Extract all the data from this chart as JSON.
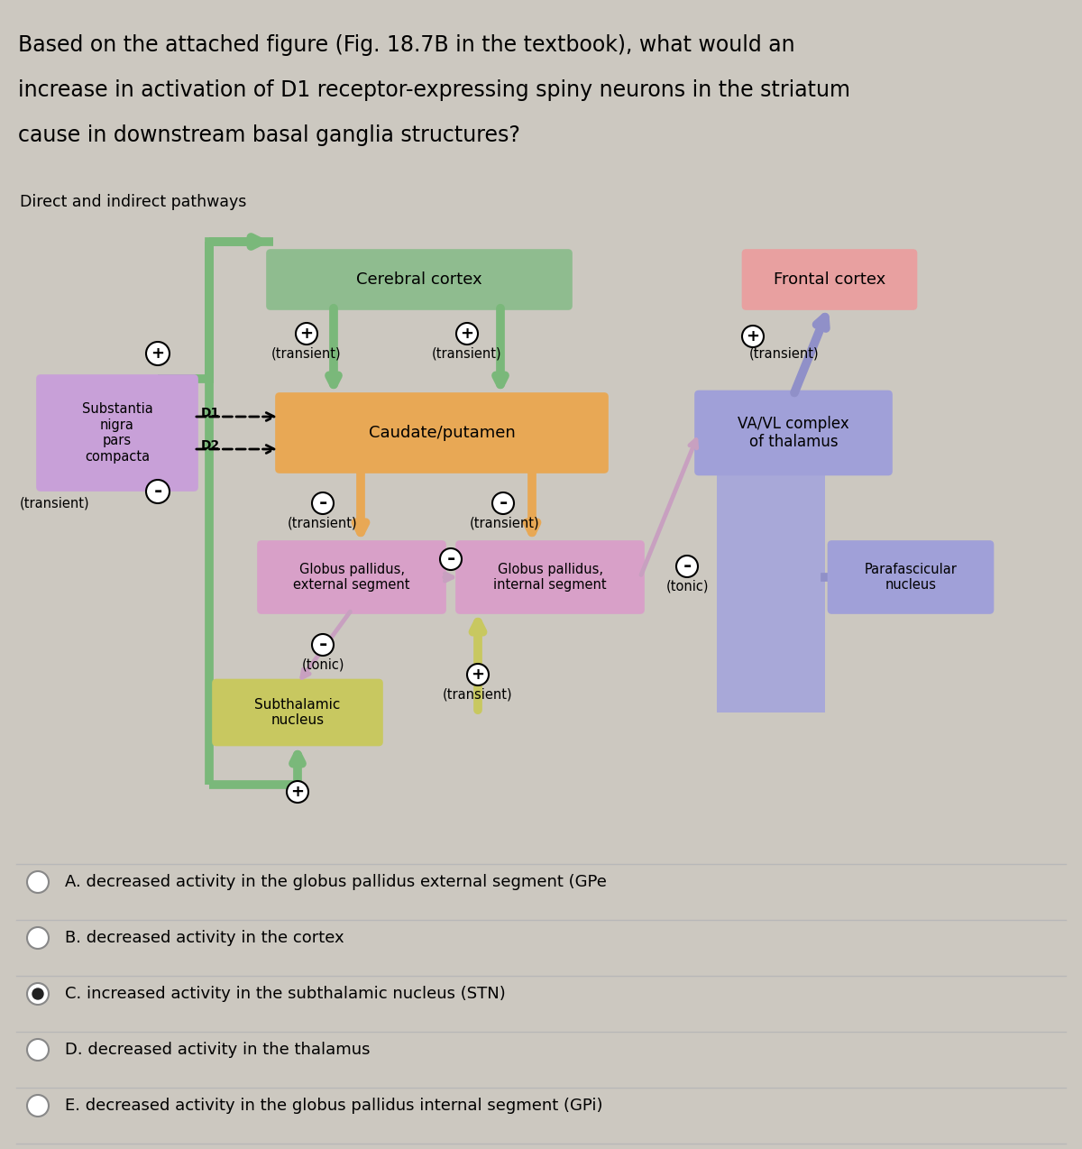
{
  "title_question_line1": "Based on the attached figure (Fig. 18.7B in the textbook), what would an",
  "title_question_line2": "increase in activation of D1 receptor-expressing spiny neurons in the striatum",
  "title_question_line3": "cause in downstream basal ganglia structures?",
  "diagram_label": "Direct and indirect pathways",
  "background_color": "#ccc8c0",
  "box_colors": {
    "cerebral_cortex": "#8fbc8f",
    "frontal_cortex": "#e8a0a0",
    "caudate_putamen": "#e8a855",
    "substantia_nigra": "#c8a0d8",
    "va_vl": "#a0a0d8",
    "gpe": "#d8a0c8",
    "gpi": "#d8a0c8",
    "subthalamic": "#c8c860",
    "parafascicular": "#a0a0d8"
  },
  "green_path_color": "#7ab87a",
  "purple_path_color": "#9090c8",
  "answer_choices": [
    {
      "label": "A",
      "text": "decreased activity in the globus pallidus external segment (GPe",
      "selected": false
    },
    {
      "label": "B",
      "text": "decreased activity in the cortex",
      "selected": false
    },
    {
      "label": "C",
      "text": "increased activity in the subthalamic nucleus (STN)",
      "selected": true
    },
    {
      "label": "D",
      "text": "decreased activity in the thalamus",
      "selected": false
    },
    {
      "label": "E",
      "text": "decreased activity in the globus pallidus internal segment (GPi)",
      "selected": false
    }
  ]
}
